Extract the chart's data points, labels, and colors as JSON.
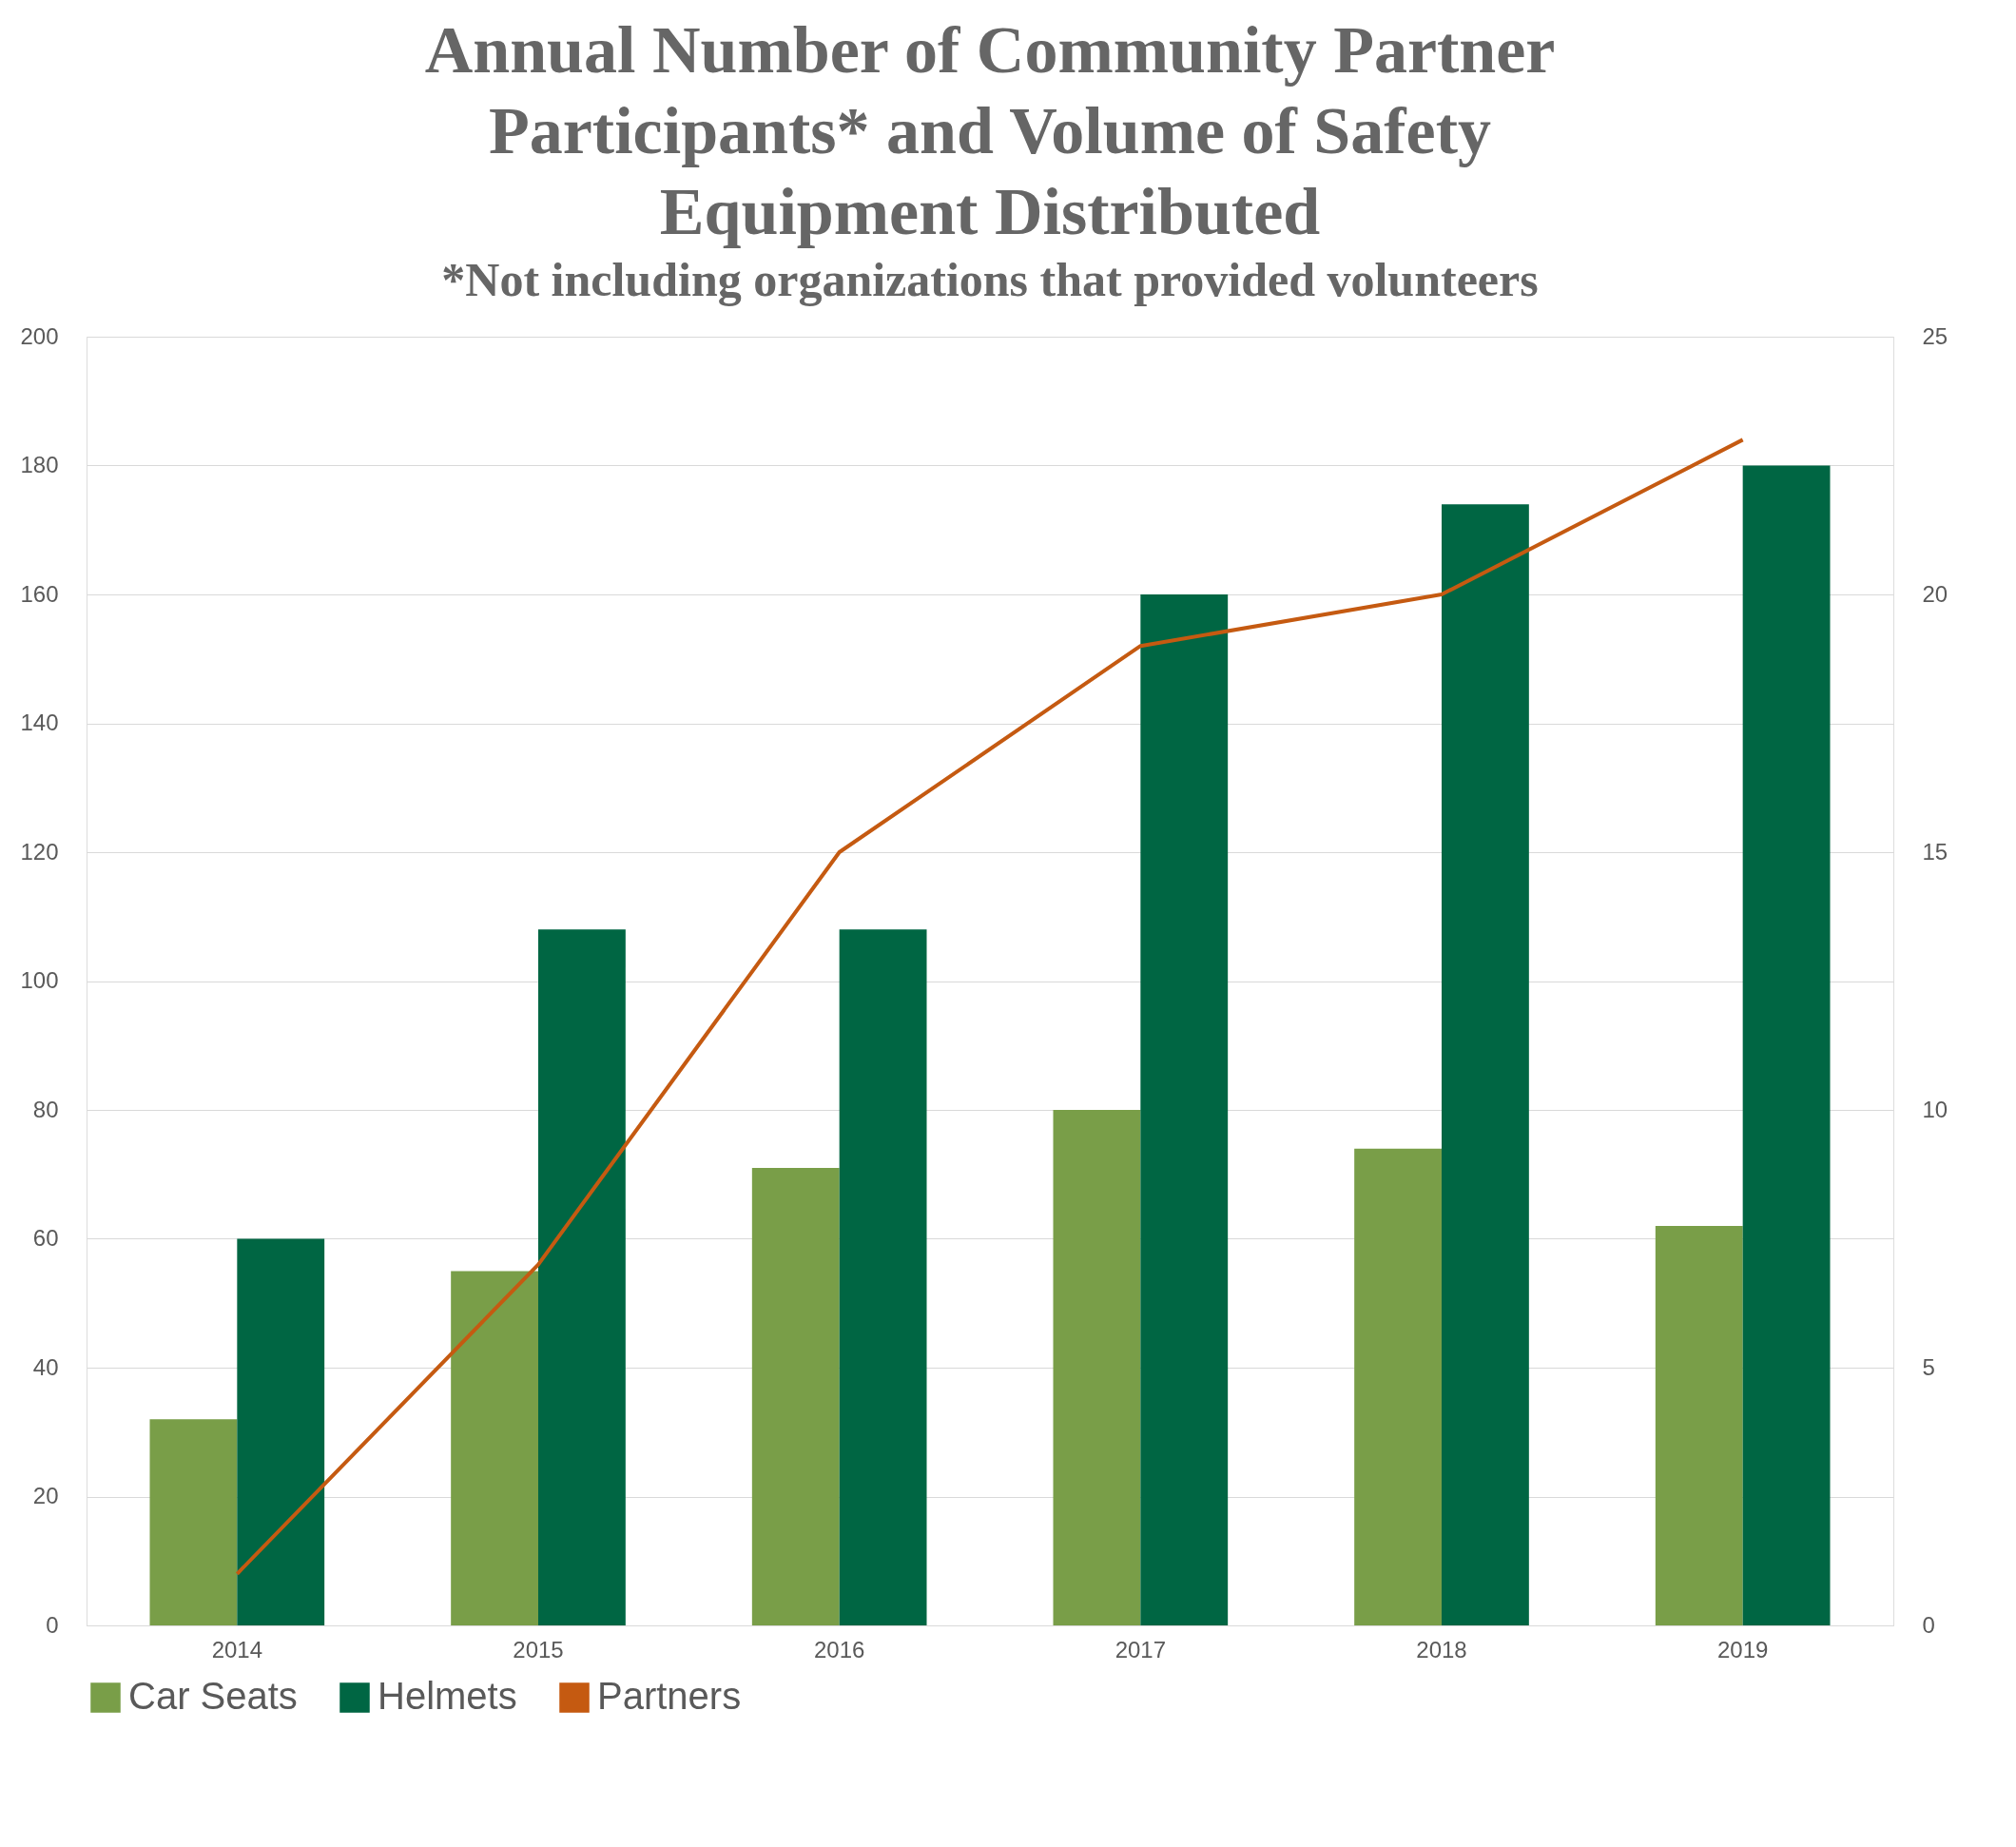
{
  "chart_data": {
    "type": "bar",
    "title": "Annual Number of Community Partner Participants* and Volume of Safety Equipment Distributed",
    "subtitle": "*Not including organizations that provided volunteers",
    "categories": [
      "2014",
      "2015",
      "2016",
      "2017",
      "2018",
      "2019"
    ],
    "series": [
      {
        "name": "Car Seats",
        "color": "#799e48",
        "values": [
          32,
          55,
          71,
          80,
          74,
          62
        ]
      },
      {
        "name": "Helmets",
        "color": "#006643",
        "values": [
          60,
          108,
          108,
          160,
          174,
          180
        ]
      },
      {
        "name": "Partners",
        "type": "line",
        "axis": "y2",
        "color": "#c55a11",
        "values": [
          1,
          7,
          15,
          19,
          20,
          23
        ]
      }
    ],
    "ylim": [
      0,
      200
    ],
    "yticks": [
      0,
      20,
      40,
      60,
      80,
      100,
      120,
      140,
      160,
      180,
      200
    ],
    "y2lim": [
      0,
      25
    ],
    "y2ticks": [
      0,
      5,
      10,
      15,
      20,
      25
    ],
    "grid": "y",
    "legend": "bottom"
  }
}
